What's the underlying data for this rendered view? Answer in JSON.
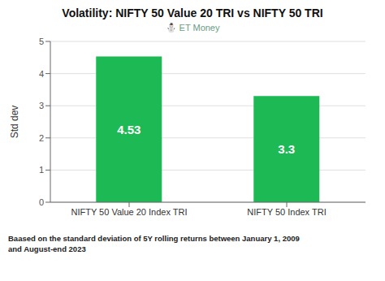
{
  "chart_data": {
    "type": "bar",
    "title": "Volatility: NIFTY 50 Value 20 TRI vs NIFTY 50 TRI",
    "subtitle": "⛄ ET Money",
    "categories": [
      "NIFTY 50 Value 20 Index TRI",
      "NIFTY 50 Index TRI"
    ],
    "values": [
      4.53,
      3.3
    ],
    "color": "#1db954",
    "ylabel": "Std dev",
    "ylim": [
      0,
      5
    ],
    "yticks": [
      0,
      1,
      2,
      3,
      4,
      5
    ],
    "grid": true,
    "data_labels": true,
    "annotations": [
      "Baased on the standard deviation of 5Y rolling returns between January 1, 2009",
      "and August-end 2023"
    ]
  }
}
